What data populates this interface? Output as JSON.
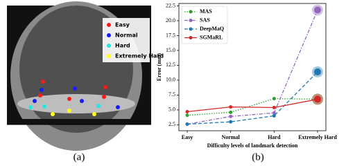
{
  "panel_a": {
    "legend": [
      {
        "label": "Easy",
        "color": "#ff1a1a"
      },
      {
        "label": "Normal",
        "color": "#1a1aff"
      },
      {
        "label": "Hard",
        "color": "#22e6e6"
      },
      {
        "label": "Extremely Hard",
        "color": "#ffff1a"
      }
    ],
    "caption": "(a)"
  },
  "chart_data": {
    "type": "line",
    "caption": "(b)",
    "y_label": "Error (mm)",
    "x_label": "Difficulty levels of landmark detection",
    "categories": [
      "Easy",
      "Normal",
      "Hard",
      "Extremely Hard"
    ],
    "series": [
      {
        "name": "MAS",
        "color": "#2ca02c",
        "linestyle": "dotted",
        "values": [
          4.1,
          4.6,
          6.9,
          6.8
        ]
      },
      {
        "name": "SAS",
        "color": "#9467bd",
        "linestyle": "dashdot",
        "values": [
          2.6,
          3.9,
          4.5,
          21.8
        ]
      },
      {
        "name": "DeepMaQ",
        "color": "#1f77b4",
        "linestyle": "dashed",
        "values": [
          2.6,
          3.0,
          4.0,
          11.4
        ]
      },
      {
        "name": "SGMaRL",
        "color": "#d62728",
        "linestyle": "solid",
        "values": [
          4.7,
          5.5,
          5.4,
          6.8
        ]
      }
    ],
    "ylim": [
      1.5,
      22.9
    ],
    "yticks": [
      2.5,
      {
        "value": 5,
        "label": "5.0"
      },
      7.5,
      {
        "value": 10,
        "label": "10.0"
      },
      12.5,
      {
        "value": 15,
        "label": "15.0"
      },
      17.5,
      {
        "value": 20,
        "label": "20.0"
      },
      22.5
    ],
    "grid": false,
    "legend": "upper left"
  }
}
